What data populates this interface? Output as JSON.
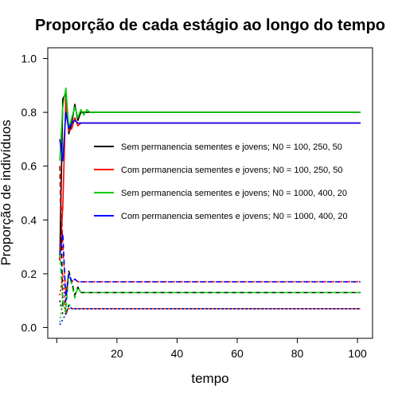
{
  "chart_data": {
    "type": "line",
    "title": "Proporção de cada estágio ao longo do tempo",
    "xlabel": "tempo",
    "ylabel": "Proporção de indivíduos",
    "xlim": [
      -3,
      105
    ],
    "ylim": [
      -0.04,
      1.04
    ],
    "xticks": [
      "20",
      "40",
      "60",
      "80",
      "100"
    ],
    "yticks": [
      "0.0",
      "0.2",
      "0.4",
      "0.6",
      "0.8",
      "1.0"
    ],
    "legend_position": "center-right",
    "grid": false,
    "legend": [
      {
        "label": "Sem permanencia sementes e jovens; N0 = 100, 250, 50",
        "color": "#000000"
      },
      {
        "label": "Com permanencia sementes e jovens; N0 = 100, 250, 50",
        "color": "#ff0000"
      },
      {
        "label": "Sem permanencia sementes e jovens; N0 = 1000, 400, 20",
        "color": "#00cd00"
      },
      {
        "label": "Com permanencia sementes e jovens; N0 = 1000, 400, 20",
        "color": "#0000ff"
      }
    ],
    "series": [
      {
        "group": "adults",
        "color": "#000000",
        "dash": "solid",
        "x": [
          1,
          2,
          3,
          4,
          5,
          6,
          7,
          8,
          9,
          10,
          11,
          12,
          13,
          14,
          15,
          101
        ],
        "y": [
          0.25,
          0.85,
          0.87,
          0.72,
          0.76,
          0.83,
          0.77,
          0.8,
          0.8,
          0.8,
          0.8,
          0.8,
          0.8,
          0.8,
          0.8,
          0.8
        ]
      },
      {
        "group": "adults",
        "color": "#ff0000",
        "dash": "solid",
        "x": [
          1,
          2,
          3,
          4,
          5,
          6,
          7,
          8,
          9,
          10,
          11,
          12,
          101
        ],
        "y": [
          0.25,
          0.45,
          0.85,
          0.73,
          0.74,
          0.78,
          0.75,
          0.76,
          0.76,
          0.76,
          0.76,
          0.76,
          0.76
        ]
      },
      {
        "group": "adults",
        "color": "#00cd00",
        "dash": "solid",
        "x": [
          1,
          2,
          3,
          4,
          5,
          6,
          7,
          8,
          9,
          10,
          11,
          12,
          13,
          14,
          15,
          101
        ],
        "y": [
          0.62,
          0.82,
          0.89,
          0.74,
          0.78,
          0.82,
          0.78,
          0.81,
          0.79,
          0.81,
          0.8,
          0.8,
          0.8,
          0.8,
          0.8,
          0.8
        ]
      },
      {
        "group": "adults",
        "color": "#0000ff",
        "dash": "solid",
        "x": [
          1,
          2,
          3,
          4,
          5,
          6,
          7,
          8,
          9,
          10,
          11,
          12,
          101
        ],
        "y": [
          0.7,
          0.62,
          0.8,
          0.74,
          0.76,
          0.77,
          0.76,
          0.76,
          0.76,
          0.76,
          0.76,
          0.76,
          0.76
        ]
      },
      {
        "group": "stage1",
        "color": "#000000",
        "dash": "dashed",
        "x": [
          1,
          2,
          3,
          4,
          5,
          6,
          7,
          8,
          9,
          10,
          101
        ],
        "y": [
          0.6,
          0.08,
          0.1,
          0.21,
          0.17,
          0.12,
          0.15,
          0.13,
          0.13,
          0.13,
          0.13
        ]
      },
      {
        "group": "stage1",
        "color": "#ff0000",
        "dash": "dashed",
        "x": [
          1,
          2,
          3,
          4,
          5,
          6,
          7,
          8,
          9,
          10,
          101
        ],
        "y": [
          0.6,
          0.3,
          0.13,
          0.2,
          0.17,
          0.18,
          0.17,
          0.17,
          0.17,
          0.17,
          0.17
        ]
      },
      {
        "group": "stage1",
        "color": "#00cd00",
        "dash": "dashed",
        "x": [
          1,
          2,
          3,
          4,
          5,
          6,
          7,
          8,
          9,
          10,
          101
        ],
        "y": [
          0.28,
          0.1,
          0.06,
          0.2,
          0.16,
          0.11,
          0.15,
          0.13,
          0.13,
          0.13,
          0.13
        ]
      },
      {
        "group": "stage1",
        "color": "#0000ff",
        "dash": "dashed",
        "x": [
          1,
          2,
          3,
          4,
          5,
          6,
          7,
          8,
          9,
          10,
          101
        ],
        "y": [
          0.27,
          0.35,
          0.1,
          0.2,
          0.17,
          0.18,
          0.17,
          0.17,
          0.17,
          0.17,
          0.17
        ]
      },
      {
        "group": "stage2",
        "color": "#000000",
        "dash": "dotted",
        "x": [
          1,
          2,
          3,
          4,
          5,
          6,
          7,
          8,
          9,
          10,
          101
        ],
        "y": [
          0.1,
          0.05,
          0.05,
          0.08,
          0.07,
          0.07,
          0.07,
          0.07,
          0.07,
          0.07,
          0.07
        ]
      },
      {
        "group": "stage2",
        "color": "#ff0000",
        "dash": "dotted",
        "x": [
          1,
          2,
          3,
          4,
          5,
          6,
          7,
          8,
          9,
          10,
          101
        ],
        "y": [
          0.12,
          0.2,
          0.05,
          0.07,
          0.07,
          0.07,
          0.07,
          0.07,
          0.07,
          0.07,
          0.07
        ]
      },
      {
        "group": "stage2",
        "color": "#00cd00",
        "dash": "dotted",
        "x": [
          1,
          2,
          3,
          4,
          5,
          6,
          7,
          8,
          9,
          10,
          101
        ],
        "y": [
          0.02,
          0.1,
          0.05,
          0.09,
          0.07,
          0.07,
          0.07,
          0.07,
          0.07,
          0.07,
          0.07
        ]
      },
      {
        "group": "stage2",
        "color": "#0000ff",
        "dash": "dotted",
        "x": [
          1,
          2,
          3,
          4,
          5,
          6,
          7,
          8,
          9,
          10,
          101
        ],
        "y": [
          0.01,
          0.03,
          0.05,
          0.08,
          0.07,
          0.07,
          0.07,
          0.07,
          0.07,
          0.07,
          0.07
        ]
      }
    ]
  }
}
